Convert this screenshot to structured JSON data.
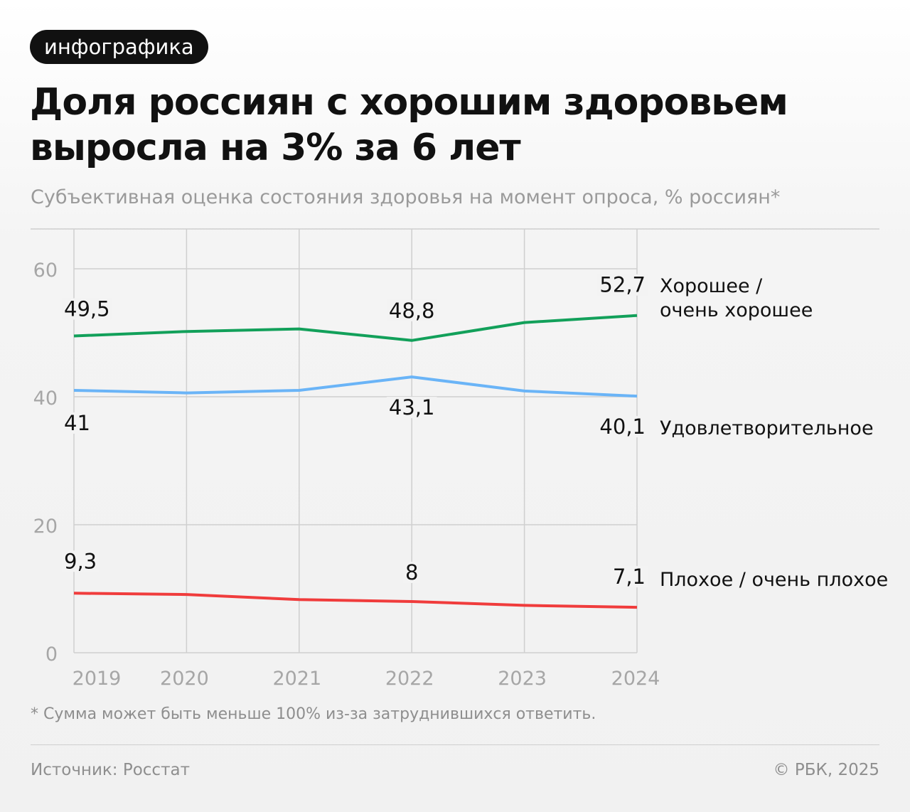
{
  "badge": "инфографика",
  "title": "Доля россиян с хорошим здоровьем выросла на 3% за 6 лет",
  "subtitle": "Субъективная оценка состояния здоровья на момент опроса, % россиян*",
  "footnote": "* Сумма может быть меньше 100% из-за затруднившихся ответить.",
  "source": "Источник: Росстат",
  "copyright": "© РБК, 2025",
  "chart_data": {
    "type": "line",
    "x": [
      "2019",
      "2020",
      "2021",
      "2022",
      "2023",
      "2024"
    ],
    "ylim": [
      0,
      60
    ],
    "yticks": [
      "0",
      "20",
      "40",
      "60"
    ],
    "grid": true,
    "series": [
      {
        "name": "Хорошее / очень хорошее",
        "name_lines": [
          "Хорошее /",
          "очень хорошее"
        ],
        "color": "#12a05a",
        "values": [
          49.5,
          50.2,
          50.6,
          48.8,
          51.6,
          52.7
        ],
        "labels": {
          "0": "49,5",
          "3": "48,8",
          "5": "52,7"
        }
      },
      {
        "name": "Удовлетворительное",
        "name_lines": [
          "Удовлетворительное"
        ],
        "color": "#6ab4f7",
        "values": [
          41,
          40.6,
          41,
          43.1,
          40.9,
          40.1
        ],
        "labels": {
          "0": "41",
          "3": "43,1",
          "5": "40,1"
        }
      },
      {
        "name": "Плохое / очень плохое",
        "name_lines": [
          "Плохое / очень плохое"
        ],
        "color": "#f03c3c",
        "values": [
          9.3,
          9.1,
          8.3,
          8.0,
          7.4,
          7.1
        ],
        "labels": {
          "0": "9,3",
          "3": "8",
          "5": "7,1"
        }
      }
    ]
  }
}
